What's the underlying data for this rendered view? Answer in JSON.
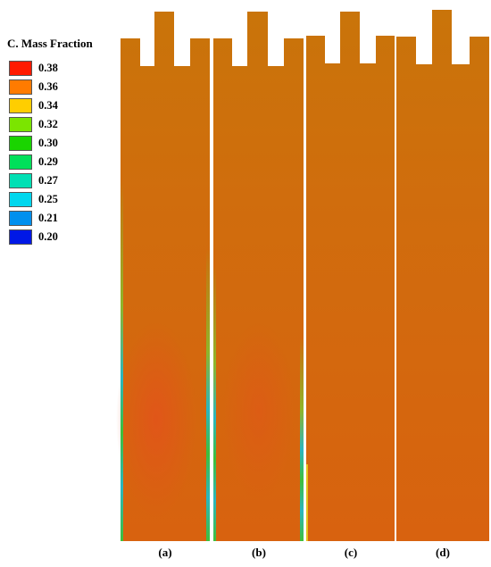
{
  "legend": {
    "title": "C. Mass Fraction",
    "levels": [
      {
        "label": "0.38",
        "color": "#ff1a00"
      },
      {
        "label": "0.36",
        "color": "#ff7b00"
      },
      {
        "label": "0.34",
        "color": "#ffce00"
      },
      {
        "label": "0.32",
        "color": "#7be500"
      },
      {
        "label": "0.30",
        "color": "#1ad400"
      },
      {
        "label": "0.29",
        "color": "#00e05a"
      },
      {
        "label": "0.27",
        "color": "#00e0b4"
      },
      {
        "label": "0.25",
        "color": "#00d7ee"
      },
      {
        "label": "0.21",
        "color": "#0090ee"
      },
      {
        "label": "0.20",
        "color": "#0018e6"
      }
    ]
  },
  "panels": [
    {
      "caption": "(a)"
    },
    {
      "caption": "(b)"
    },
    {
      "caption": "(c)"
    },
    {
      "caption": "(d)"
    }
  ],
  "colors": {
    "field_base": "#d66a0f",
    "field_upper": "#c9740a",
    "field_hot": "#dd5a12",
    "edge_green": "#3fbf3a",
    "edge_cyan": "#2bb6c0"
  }
}
